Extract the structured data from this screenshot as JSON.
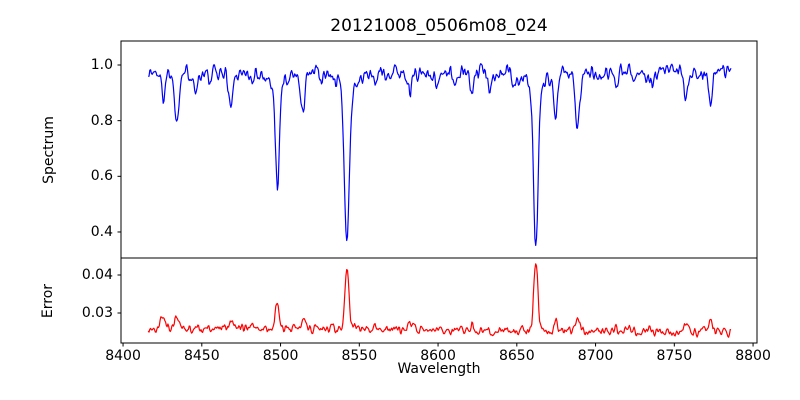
{
  "figure": {
    "background": "#ffffff",
    "spine_color": "#000000",
    "text_color": "#000000"
  },
  "chart_data": {
    "type": "line",
    "title": "20121008_0506m08_024",
    "xlabel": "Wavelength",
    "grid": false,
    "legend_position": "none",
    "xlim": [
      8398.7,
      8802.5
    ],
    "xticks": [
      8400,
      8450,
      8500,
      8550,
      8600,
      8650,
      8700,
      8750,
      8800
    ],
    "xtick_labels": [
      "8400",
      "8450",
      "8500",
      "8550",
      "8600",
      "8650",
      "8700",
      "8750",
      "8800"
    ],
    "x_start": 8416,
    "x_end": 8786,
    "x_step": 0.5,
    "seed": 1337,
    "panels": [
      {
        "name": "spectrum",
        "ylabel": "Spectrum",
        "color": "#0000ff",
        "ylim": [
          0.3065,
          1.0862
        ],
        "yticks": [
          0.4,
          0.6,
          0.8,
          1.0
        ],
        "ytick_labels": [
          "0.4",
          "0.6",
          "0.8",
          "1.0"
        ],
        "continuum": 0.972,
        "noise_amp": 0.04,
        "absorption_lines": [
          [
            8425.4,
            0.09,
            1.0
          ],
          [
            8434.0,
            0.17,
            1.3
          ],
          [
            8446.5,
            0.07,
            0.9
          ],
          [
            8455.0,
            0.05,
            0.8
          ],
          [
            8468.4,
            0.13,
            1.2
          ],
          [
            8482.0,
            0.05,
            0.9
          ],
          [
            8498.0,
            0.37,
            1.3
          ],
          [
            8498.0,
            0.04,
            5.0
          ],
          [
            8514.1,
            0.15,
            1.2
          ],
          [
            8526.0,
            0.04,
            0.8
          ],
          [
            8542.1,
            0.57,
            1.5
          ],
          [
            8542.1,
            0.05,
            7.0
          ],
          [
            8560.0,
            0.04,
            0.8
          ],
          [
            8582.3,
            0.08,
            1.0
          ],
          [
            8598.8,
            0.05,
            0.9
          ],
          [
            8611.0,
            0.06,
            0.9
          ],
          [
            8621.6,
            0.09,
            1.1
          ],
          [
            8633.0,
            0.05,
            0.9
          ],
          [
            8648.0,
            0.05,
            0.9
          ],
          [
            8662.1,
            0.58,
            1.4
          ],
          [
            8662.1,
            0.05,
            7.0
          ],
          [
            8674.7,
            0.16,
            1.1
          ],
          [
            8688.6,
            0.21,
            1.4
          ],
          [
            8713.2,
            0.05,
            0.9
          ],
          [
            8736.0,
            0.05,
            0.9
          ],
          [
            8757.2,
            0.11,
            1.0
          ],
          [
            8772.9,
            0.12,
            1.0
          ]
        ]
      },
      {
        "name": "error",
        "ylabel": "Error",
        "color": "#ff0000",
        "ylim": [
          0.02211,
          0.04447
        ],
        "yticks": [
          0.03,
          0.04
        ],
        "ytick_labels": [
          "0.03",
          "0.04"
        ],
        "baseline": [
          0.026,
          0.025
        ],
        "noise_amp": 0.0017,
        "peaks": [
          [
            8425.4,
            0.0035,
            1.2
          ],
          [
            8434.0,
            0.0025,
            1.4
          ],
          [
            8446.5,
            0.0012,
            1.0
          ],
          [
            8468.4,
            0.0022,
            1.3
          ],
          [
            8482.0,
            0.001,
            1.0
          ],
          [
            8498.0,
            0.007,
            1.2
          ],
          [
            8514.1,
            0.0018,
            1.2
          ],
          [
            8542.1,
            0.016,
            1.3
          ],
          [
            8560.0,
            0.0008,
            0.9
          ],
          [
            8582.3,
            0.0015,
            1.0
          ],
          [
            8598.8,
            0.0008,
            0.9
          ],
          [
            8621.6,
            0.0012,
            1.1
          ],
          [
            8662.1,
            0.018,
            1.3
          ],
          [
            8674.7,
            0.0025,
            1.1
          ],
          [
            8688.6,
            0.003,
            1.4
          ],
          [
            8713.2,
            0.001,
            0.9
          ],
          [
            8736.0,
            0.001,
            0.9
          ],
          [
            8757.2,
            0.0025,
            1.0
          ],
          [
            8772.9,
            0.0028,
            1.0
          ]
        ]
      }
    ]
  }
}
